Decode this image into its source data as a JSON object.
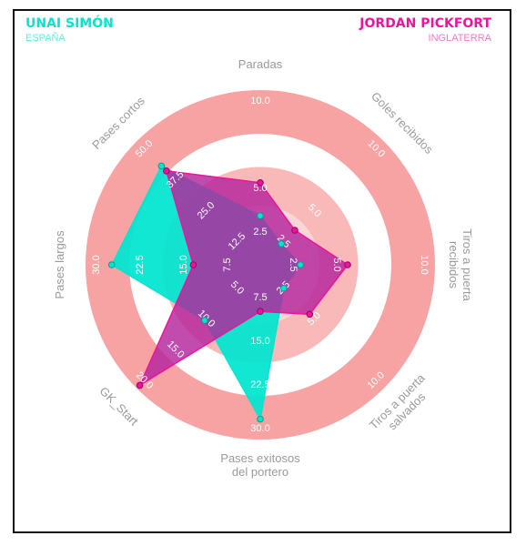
{
  "header": {
    "player_a": {
      "name": "UNAI SIMÓN",
      "country": "ESPAÑA"
    },
    "player_b": {
      "name": "JORDAN PICKFORT",
      "country": "INGLATERRA"
    }
  },
  "colors": {
    "player_a": "#00e5d0",
    "player_b": "#f0119f",
    "player_b_fill": "#b3249c",
    "ring_outer": "#f7a3a3",
    "ring_inner": "#f9b9b9",
    "country_a": "#5af0e0",
    "country_b": "#f07ac8",
    "axis_label": "#9a9a9a",
    "tick_label": "#ffffff"
  },
  "chart_data": {
    "type": "radar",
    "axes": [
      {
        "label": [
          "Paradas"
        ],
        "ticks": [
          "2.5",
          "5.0",
          "7.5",
          "10.0"
        ],
        "max": 10
      },
      {
        "label": [
          "Goles recibidos"
        ],
        "ticks": [
          "2.5",
          "5.0",
          "7.5",
          "10.0"
        ],
        "max": 10
      },
      {
        "label": [
          "Tiros a puerta",
          "recibidos"
        ],
        "ticks": [
          "2.5",
          "5.0",
          "7.5",
          "10.0"
        ],
        "max": 10
      },
      {
        "label": [
          "Tiros a puerta",
          "salvados"
        ],
        "ticks": [
          "2.5",
          "5.0",
          "7.5",
          "10.0"
        ],
        "max": 10
      },
      {
        "label": [
          "Pases exitosos",
          "del portero"
        ],
        "ticks": [
          "7.5",
          "15.0",
          "22.5",
          "30.0"
        ],
        "max": 30
      },
      {
        "label": [
          "GK_Start"
        ],
        "ticks": [
          "5.0",
          "10.0",
          "15.0",
          "20.0"
        ],
        "max": 20
      },
      {
        "label": [
          "Pases largos"
        ],
        "ticks": [
          "7.5",
          "15.0",
          "22.5",
          "30.0"
        ],
        "max": 30
      },
      {
        "label": [
          "Pases cortos"
        ],
        "ticks": [
          "12.5",
          "25.0",
          "37.5",
          "50.0"
        ],
        "max": 50
      }
    ],
    "series": [
      {
        "name": "UNAI SIMÓN",
        "values": [
          2.8,
          1.7,
          2.3,
          1.9,
          26.5,
          9.0,
          25.5,
          40.0
        ]
      },
      {
        "name": "JORDAN PICKFORT",
        "values": [
          4.7,
          2.8,
          5.0,
          4.0,
          8.0,
          19.5,
          11.5,
          38.0
        ]
      }
    ],
    "grid": "concentric rings"
  }
}
